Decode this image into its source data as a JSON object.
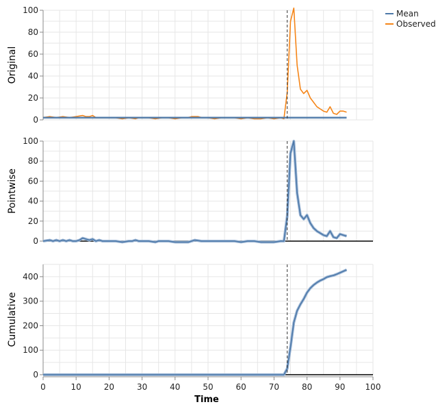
{
  "legend": {
    "items": [
      {
        "label": "Mean",
        "color": "#4c78a8"
      },
      {
        "label": "Observed",
        "color": "#f58518"
      }
    ]
  },
  "chart_data": [
    {
      "type": "line",
      "ylabel": "Original",
      "xlim": [
        0,
        100
      ],
      "ylim": [
        0,
        100
      ],
      "yticks": [
        0,
        20,
        40,
        60,
        80,
        100
      ],
      "grid": true,
      "intervention_x": 74,
      "series": [
        {
          "name": "Observed",
          "color": "#f58518",
          "x": [
            0,
            2,
            4,
            6,
            8,
            10,
            12,
            13,
            14,
            15,
            16,
            18,
            20,
            22,
            24,
            26,
            28,
            29,
            30,
            32,
            34,
            36,
            38,
            40,
            42,
            44,
            45,
            46,
            47,
            48,
            50,
            52,
            54,
            56,
            58,
            60,
            62,
            64,
            66,
            68,
            70,
            72,
            73,
            74,
            75,
            76,
            77,
            78,
            79,
            80,
            81,
            82,
            83,
            84,
            85,
            86,
            87,
            88,
            89,
            90,
            91,
            92
          ],
          "y": [
            2,
            3,
            2,
            3,
            2,
            3,
            4,
            3,
            3,
            4,
            2,
            2,
            2,
            2,
            1,
            2,
            1,
            2,
            2,
            2,
            1,
            2,
            2,
            1,
            2,
            2,
            3,
            3,
            3,
            2,
            2,
            1,
            2,
            2,
            2,
            1,
            2,
            1,
            1,
            2,
            1,
            2,
            1,
            25,
            90,
            102,
            50,
            28,
            24,
            27,
            20,
            16,
            12,
            10,
            8,
            7,
            12,
            6,
            5,
            8,
            8,
            7
          ]
        },
        {
          "name": "Mean",
          "color": "#4c78a8",
          "x": [
            0,
            10,
            20,
            30,
            40,
            50,
            60,
            70,
            74,
            80,
            90,
            92
          ],
          "y": [
            2,
            2,
            2,
            2,
            2,
            2,
            2,
            2,
            2,
            2,
            2,
            2
          ]
        }
      ]
    },
    {
      "type": "line",
      "ylabel": "Pointwise",
      "xlim": [
        0,
        100
      ],
      "ylim": [
        0,
        100
      ],
      "yticks": [
        0,
        20,
        40,
        60,
        80,
        100
      ],
      "grid": true,
      "intervention_x": 74,
      "series": [
        {
          "color": "#4c78a8",
          "x": [
            0,
            2,
            3,
            4,
            5,
            6,
            7,
            8,
            9,
            10,
            11,
            12,
            13,
            14,
            15,
            16,
            17,
            18,
            20,
            22,
            24,
            26,
            27,
            28,
            29,
            30,
            32,
            34,
            35,
            36,
            38,
            40,
            42,
            44,
            46,
            48,
            50,
            52,
            54,
            56,
            58,
            60,
            62,
            64,
            66,
            68,
            70,
            72,
            73,
            74,
            75,
            76,
            77,
            78,
            79,
            80,
            81,
            82,
            83,
            84,
            85,
            86,
            87,
            88,
            89,
            90,
            91,
            92
          ],
          "y": [
            0,
            1,
            0,
            1,
            0,
            1,
            0,
            1,
            0,
            0,
            1,
            3,
            2,
            1,
            2,
            0,
            1,
            0,
            0,
            0,
            -1,
            0,
            0,
            1,
            0,
            0,
            0,
            -1,
            0,
            0,
            0,
            -1,
            -1,
            -1,
            1,
            0,
            0,
            0,
            0,
            0,
            0,
            -1,
            0,
            0,
            -1,
            -1,
            -1,
            0,
            0,
            25,
            88,
            100,
            48,
            26,
            22,
            26,
            18,
            13,
            10,
            8,
            6,
            5,
            10,
            4,
            3,
            7,
            6,
            5
          ]
        }
      ]
    },
    {
      "type": "line",
      "ylabel": "Cumulative",
      "xlabel": "Time",
      "xlim": [
        0,
        100
      ],
      "ylim": [
        0,
        450
      ],
      "yticks": [
        0,
        100,
        200,
        300,
        400
      ],
      "xticks": [
        0,
        10,
        20,
        30,
        40,
        50,
        60,
        70,
        80,
        90,
        100
      ],
      "grid": true,
      "intervention_x": 74,
      "series": [
        {
          "color": "#4c78a8",
          "x": [
            0,
            10,
            20,
            30,
            40,
            50,
            60,
            70,
            72,
            73,
            74,
            75,
            76,
            77,
            78,
            79,
            80,
            81,
            82,
            83,
            84,
            85,
            86,
            87,
            88,
            89,
            90,
            91,
            92
          ],
          "y": [
            0,
            0,
            0,
            0,
            0,
            0,
            0,
            0,
            0,
            0,
            25,
            113,
            213,
            261,
            287,
            309,
            335,
            353,
            366,
            376,
            384,
            390,
            398,
            402,
            405,
            410,
            416,
            422,
            428
          ]
        }
      ]
    }
  ]
}
